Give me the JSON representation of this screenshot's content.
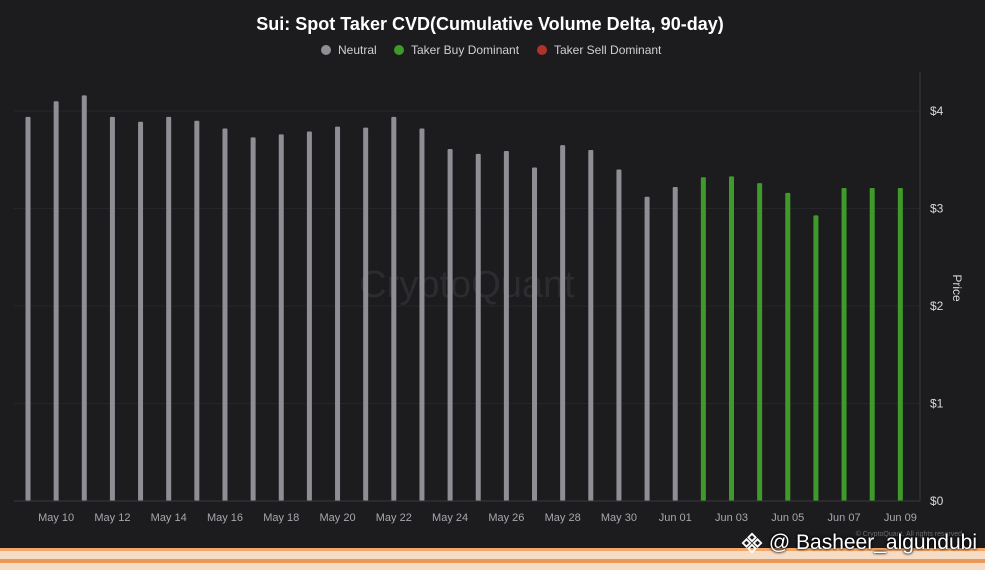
{
  "chart_data": {
    "type": "bar",
    "title": "Sui: Spot Taker CVD(Cumulative Volume Delta, 90-day)",
    "legend": [
      {
        "name": "Neutral",
        "color": "#8e8e94"
      },
      {
        "name": "Taker Buy Dominant",
        "color": "#3f9b29"
      },
      {
        "name": "Taker Sell Dominant",
        "color": "#b0322c"
      }
    ],
    "x_tick_labels": [
      "May 10",
      "May 12",
      "May 14",
      "May 16",
      "May 18",
      "May 20",
      "May 22",
      "May 24",
      "May 26",
      "May 28",
      "May 30",
      "Jun 01",
      "Jun 03",
      "Jun 05",
      "Jun 07",
      "Jun 09"
    ],
    "y_tick_labels": [
      "$0",
      "$1",
      "$2",
      "$3",
      "$4"
    ],
    "ylabel": "Price",
    "ylim": [
      0,
      4.4
    ],
    "start_date": "May 09",
    "series": [
      {
        "name": "Neutral",
        "color": "#8e8e94",
        "points": [
          {
            "x": "May 09",
            "y": 3.94
          },
          {
            "x": "May 10",
            "y": 4.1
          },
          {
            "x": "May 11",
            "y": 4.16
          },
          {
            "x": "May 12",
            "y": 3.94
          },
          {
            "x": "May 13",
            "y": 3.89
          },
          {
            "x": "May 14",
            "y": 3.94
          },
          {
            "x": "May 15",
            "y": 3.9
          },
          {
            "x": "May 16",
            "y": 3.82
          },
          {
            "x": "May 17",
            "y": 3.73
          },
          {
            "x": "May 18",
            "y": 3.76
          },
          {
            "x": "May 19",
            "y": 3.79
          },
          {
            "x": "May 20",
            "y": 3.84
          },
          {
            "x": "May 21",
            "y": 3.83
          },
          {
            "x": "May 22",
            "y": 3.94
          },
          {
            "x": "May 23",
            "y": 3.82
          },
          {
            "x": "May 24",
            "y": 3.61
          },
          {
            "x": "May 25",
            "y": 3.56
          },
          {
            "x": "May 26",
            "y": 3.59
          },
          {
            "x": "May 27",
            "y": 3.42
          },
          {
            "x": "May 28",
            "y": 3.65
          },
          {
            "x": "May 29",
            "y": 3.6
          },
          {
            "x": "May 30",
            "y": 3.4
          },
          {
            "x": "May 31",
            "y": 3.12
          },
          {
            "x": "Jun 01",
            "y": 3.22
          }
        ]
      },
      {
        "name": "Taker Buy Dominant",
        "color": "#3f9b29",
        "points": [
          {
            "x": "Jun 02",
            "y": 3.32
          },
          {
            "x": "Jun 03",
            "y": 3.33
          },
          {
            "x": "Jun 04",
            "y": 3.26
          },
          {
            "x": "Jun 05",
            "y": 3.16
          },
          {
            "x": "Jun 06",
            "y": 2.93
          },
          {
            "x": "Jun 07",
            "y": 3.21
          },
          {
            "x": "Jun 08",
            "y": 3.21
          },
          {
            "x": "Jun 09",
            "y": 3.21
          }
        ]
      }
    ],
    "watermark": "CryptoQuant",
    "credit": "© CryptoQuant. All rights reserved",
    "grid": true,
    "legend_position": "top-center"
  },
  "overlay": {
    "handle": "@ Basheer_algundubi",
    "handle_icon": "binance-diamond-icon"
  }
}
